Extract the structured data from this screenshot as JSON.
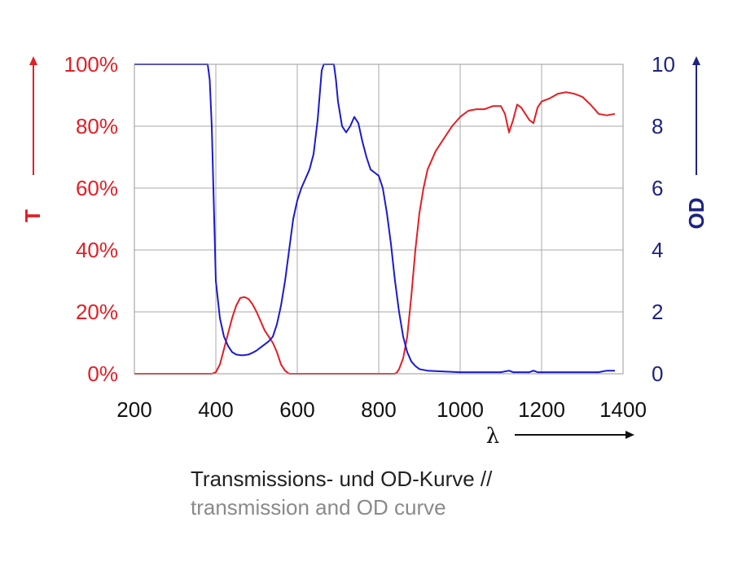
{
  "caption": {
    "line1": "Transmissions- und OD-Kurve //",
    "line2": "transmission and OD curve"
  },
  "chart_data": {
    "type": "line",
    "x_axis": {
      "label": "λ",
      "range": [
        200,
        1400
      ],
      "ticks": [
        200,
        400,
        600,
        800,
        1000,
        1200,
        1400
      ],
      "tick_labels": [
        "200",
        "400",
        "600",
        "800",
        "1000",
        "1200",
        "1400"
      ]
    },
    "y_left": {
      "label": "T",
      "range": [
        0,
        100
      ],
      "ticks": [
        0,
        20,
        40,
        60,
        80,
        100
      ],
      "tick_labels": [
        "0%",
        "20%",
        "40%",
        "60%",
        "80%",
        "100%"
      ],
      "color": "#e31e24"
    },
    "y_right": {
      "label": "OD",
      "range": [
        0,
        10
      ],
      "ticks": [
        0,
        2,
        4,
        6,
        8,
        10
      ],
      "tick_labels": [
        "0",
        "2",
        "4",
        "6",
        "8",
        "10"
      ],
      "color": "#1d2380"
    },
    "grid": true,
    "series": [
      {
        "axis": "left",
        "color": "#e31e24",
        "points": [
          [
            200,
            0
          ],
          [
            390,
            0
          ],
          [
            400,
            0.5
          ],
          [
            410,
            3
          ],
          [
            420,
            8
          ],
          [
            430,
            13
          ],
          [
            440,
            18
          ],
          [
            450,
            22
          ],
          [
            460,
            24.5
          ],
          [
            470,
            24.8
          ],
          [
            480,
            24.2
          ],
          [
            490,
            22.5
          ],
          [
            500,
            20
          ],
          [
            510,
            17
          ],
          [
            520,
            14
          ],
          [
            530,
            12
          ],
          [
            540,
            10
          ],
          [
            550,
            7
          ],
          [
            560,
            3
          ],
          [
            570,
            1
          ],
          [
            580,
            0
          ],
          [
            840,
            0
          ],
          [
            845,
            0.5
          ],
          [
            850,
            1.5
          ],
          [
            860,
            5
          ],
          [
            870,
            12
          ],
          [
            880,
            25
          ],
          [
            890,
            40
          ],
          [
            900,
            52
          ],
          [
            910,
            60
          ],
          [
            920,
            66
          ],
          [
            940,
            72
          ],
          [
            960,
            76
          ],
          [
            980,
            80
          ],
          [
            1000,
            83
          ],
          [
            1020,
            85
          ],
          [
            1040,
            85.5
          ],
          [
            1060,
            85.5
          ],
          [
            1080,
            86.5
          ],
          [
            1100,
            86.5
          ],
          [
            1110,
            84
          ],
          [
            1120,
            78
          ],
          [
            1130,
            82
          ],
          [
            1140,
            87
          ],
          [
            1150,
            86
          ],
          [
            1160,
            84
          ],
          [
            1170,
            82
          ],
          [
            1180,
            81
          ],
          [
            1190,
            86
          ],
          [
            1200,
            88
          ],
          [
            1220,
            89
          ],
          [
            1240,
            90.5
          ],
          [
            1260,
            91
          ],
          [
            1280,
            90.5
          ],
          [
            1300,
            89.5
          ],
          [
            1320,
            87
          ],
          [
            1340,
            84
          ],
          [
            1360,
            83.5
          ],
          [
            1380,
            84
          ]
        ]
      },
      {
        "axis": "right",
        "color": "#1a1ad0",
        "points": [
          [
            200,
            10
          ],
          [
            380,
            10
          ],
          [
            385,
            9.5
          ],
          [
            390,
            8
          ],
          [
            395,
            5.5
          ],
          [
            400,
            3
          ],
          [
            410,
            1.8
          ],
          [
            420,
            1.2
          ],
          [
            430,
            0.9
          ],
          [
            440,
            0.7
          ],
          [
            450,
            0.62
          ],
          [
            460,
            0.6
          ],
          [
            470,
            0.6
          ],
          [
            480,
            0.62
          ],
          [
            490,
            0.68
          ],
          [
            500,
            0.75
          ],
          [
            510,
            0.85
          ],
          [
            520,
            0.95
          ],
          [
            530,
            1.05
          ],
          [
            540,
            1.2
          ],
          [
            550,
            1.6
          ],
          [
            560,
            2.2
          ],
          [
            570,
            3.0
          ],
          [
            580,
            4.0
          ],
          [
            590,
            5.0
          ],
          [
            600,
            5.6
          ],
          [
            610,
            6.0
          ],
          [
            620,
            6.3
          ],
          [
            630,
            6.6
          ],
          [
            640,
            7.1
          ],
          [
            650,
            8.2
          ],
          [
            660,
            9.8
          ],
          [
            665,
            10
          ],
          [
            690,
            10
          ],
          [
            695,
            9.5
          ],
          [
            700,
            8.8
          ],
          [
            710,
            8.0
          ],
          [
            720,
            7.8
          ],
          [
            730,
            8.0
          ],
          [
            740,
            8.3
          ],
          [
            750,
            8.1
          ],
          [
            760,
            7.5
          ],
          [
            770,
            7.0
          ],
          [
            780,
            6.6
          ],
          [
            790,
            6.5
          ],
          [
            800,
            6.4
          ],
          [
            810,
            6.0
          ],
          [
            820,
            5.2
          ],
          [
            830,
            4.2
          ],
          [
            840,
            3.0
          ],
          [
            850,
            2.0
          ],
          [
            860,
            1.2
          ],
          [
            870,
            0.7
          ],
          [
            880,
            0.4
          ],
          [
            890,
            0.25
          ],
          [
            900,
            0.15
          ],
          [
            920,
            0.1
          ],
          [
            950,
            0.08
          ],
          [
            1000,
            0.05
          ],
          [
            1100,
            0.05
          ],
          [
            1120,
            0.1
          ],
          [
            1130,
            0.05
          ],
          [
            1170,
            0.05
          ],
          [
            1180,
            0.1
          ],
          [
            1190,
            0.05
          ],
          [
            1340,
            0.05
          ],
          [
            1360,
            0.1
          ],
          [
            1380,
            0.1
          ]
        ]
      }
    ]
  }
}
